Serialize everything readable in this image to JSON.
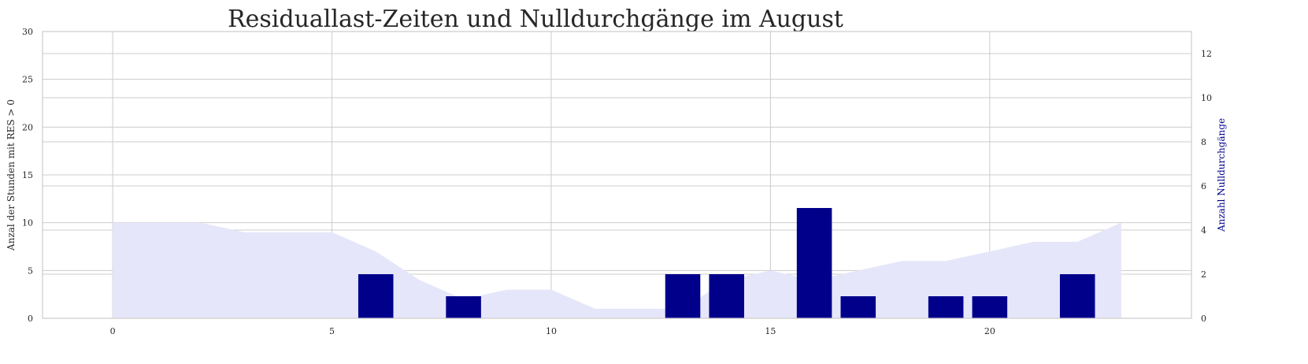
{
  "chart_data": {
    "type": "bar",
    "title": "Residuallast-Zeiten und Nulldurchgänge im August",
    "x": [
      0,
      1,
      2,
      3,
      4,
      5,
      6,
      7,
      8,
      9,
      10,
      11,
      12,
      13,
      14,
      15,
      16,
      17,
      18,
      19,
      20,
      21,
      22,
      23
    ],
    "xticks": [
      0,
      5,
      10,
      15,
      20
    ],
    "xlim": [
      -1.6,
      24.6
    ],
    "series": [
      {
        "name": "Anzal der Stunden mit RES > 0",
        "type": "area",
        "axis": "left",
        "color": "#e6e6fa",
        "values": [
          10,
          10,
          10,
          9,
          9,
          9,
          7,
          4,
          2,
          3,
          3,
          1,
          1,
          1,
          4,
          5,
          4,
          5,
          6,
          6,
          7,
          8,
          8,
          10
        ]
      },
      {
        "name": "Anzahl Nulldurchgänge",
        "type": "bar",
        "axis": "right",
        "color": "#00008b",
        "values": [
          0,
          0,
          0,
          0,
          0,
          0,
          2,
          0,
          1,
          0,
          0,
          0,
          0,
          2,
          2,
          0,
          5,
          1,
          0,
          1,
          1,
          0,
          2,
          0
        ]
      }
    ],
    "ylabel": "Anzal der Stunden mit RES > 0",
    "ylim": [
      0,
      30
    ],
    "yticks": [
      0,
      5,
      10,
      15,
      20,
      25,
      30
    ],
    "y2label": "Anzahl Nulldurchgänge",
    "y2lim": [
      0,
      13
    ],
    "y2ticks": [
      0,
      2,
      4,
      6,
      8,
      10,
      12
    ],
    "y2label_color": "#00008b",
    "grid": true
  }
}
